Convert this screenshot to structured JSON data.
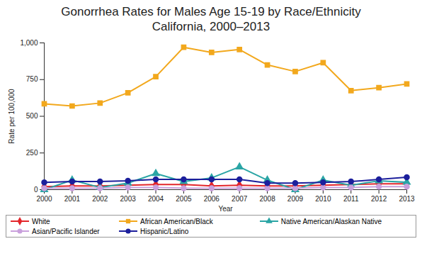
{
  "chart_data": {
    "type": "line",
    "title": "Gonorrhea Rates for Males Age 15-19 by Race/Ethnicity",
    "subtitle": "California, 2000–2013",
    "x_label": "Year",
    "y_label": "Rate per 100,000",
    "x": [
      2000,
      2001,
      2002,
      2003,
      2004,
      2005,
      2006,
      2007,
      2008,
      2009,
      2010,
      2011,
      2012,
      2013
    ],
    "xlim": [
      2000,
      2013
    ],
    "xticks": [
      2000,
      2001,
      2002,
      2003,
      2004,
      2005,
      2006,
      2007,
      2008,
      2009,
      2010,
      2011,
      2012,
      2013
    ],
    "ylim": [
      0,
      1000
    ],
    "yticks": [
      0,
      250,
      500,
      750,
      {
        "value": 1000,
        "label": "1,000"
      }
    ],
    "grid": false,
    "legend": "bottom",
    "series": [
      {
        "name": "White",
        "color": "#e3262b",
        "marker": "diamond",
        "values": [
          20,
          25,
          25,
          30,
          35,
          35,
          25,
          30,
          25,
          25,
          30,
          35,
          40,
          40
        ]
      },
      {
        "name": "African American/Black",
        "color": "#f2a81d",
        "marker": "square",
        "values": [
          585,
          570,
          590,
          660,
          770,
          970,
          935,
          955,
          850,
          805,
          865,
          675,
          695,
          720
        ]
      },
      {
        "name": "Native American/Alaskan Native",
        "color": "#2aa5a5",
        "marker": "triangle",
        "values": [
          0,
          65,
          15,
          45,
          110,
          55,
          80,
          155,
          65,
          0,
          65,
          30,
          60,
          50
        ]
      },
      {
        "name": "Asian/Pacific Islander",
        "color": "#c9a0dc",
        "marker": "circle",
        "values": [
          10,
          10,
          10,
          15,
          15,
          10,
          10,
          10,
          10,
          10,
          15,
          15,
          20,
          20
        ]
      },
      {
        "name": "Hispanic/Latino",
        "color": "#1c1f9c",
        "marker": "circle",
        "values": [
          50,
          55,
          55,
          60,
          70,
          70,
          70,
          70,
          45,
          45,
          50,
          55,
          70,
          85
        ]
      }
    ]
  }
}
